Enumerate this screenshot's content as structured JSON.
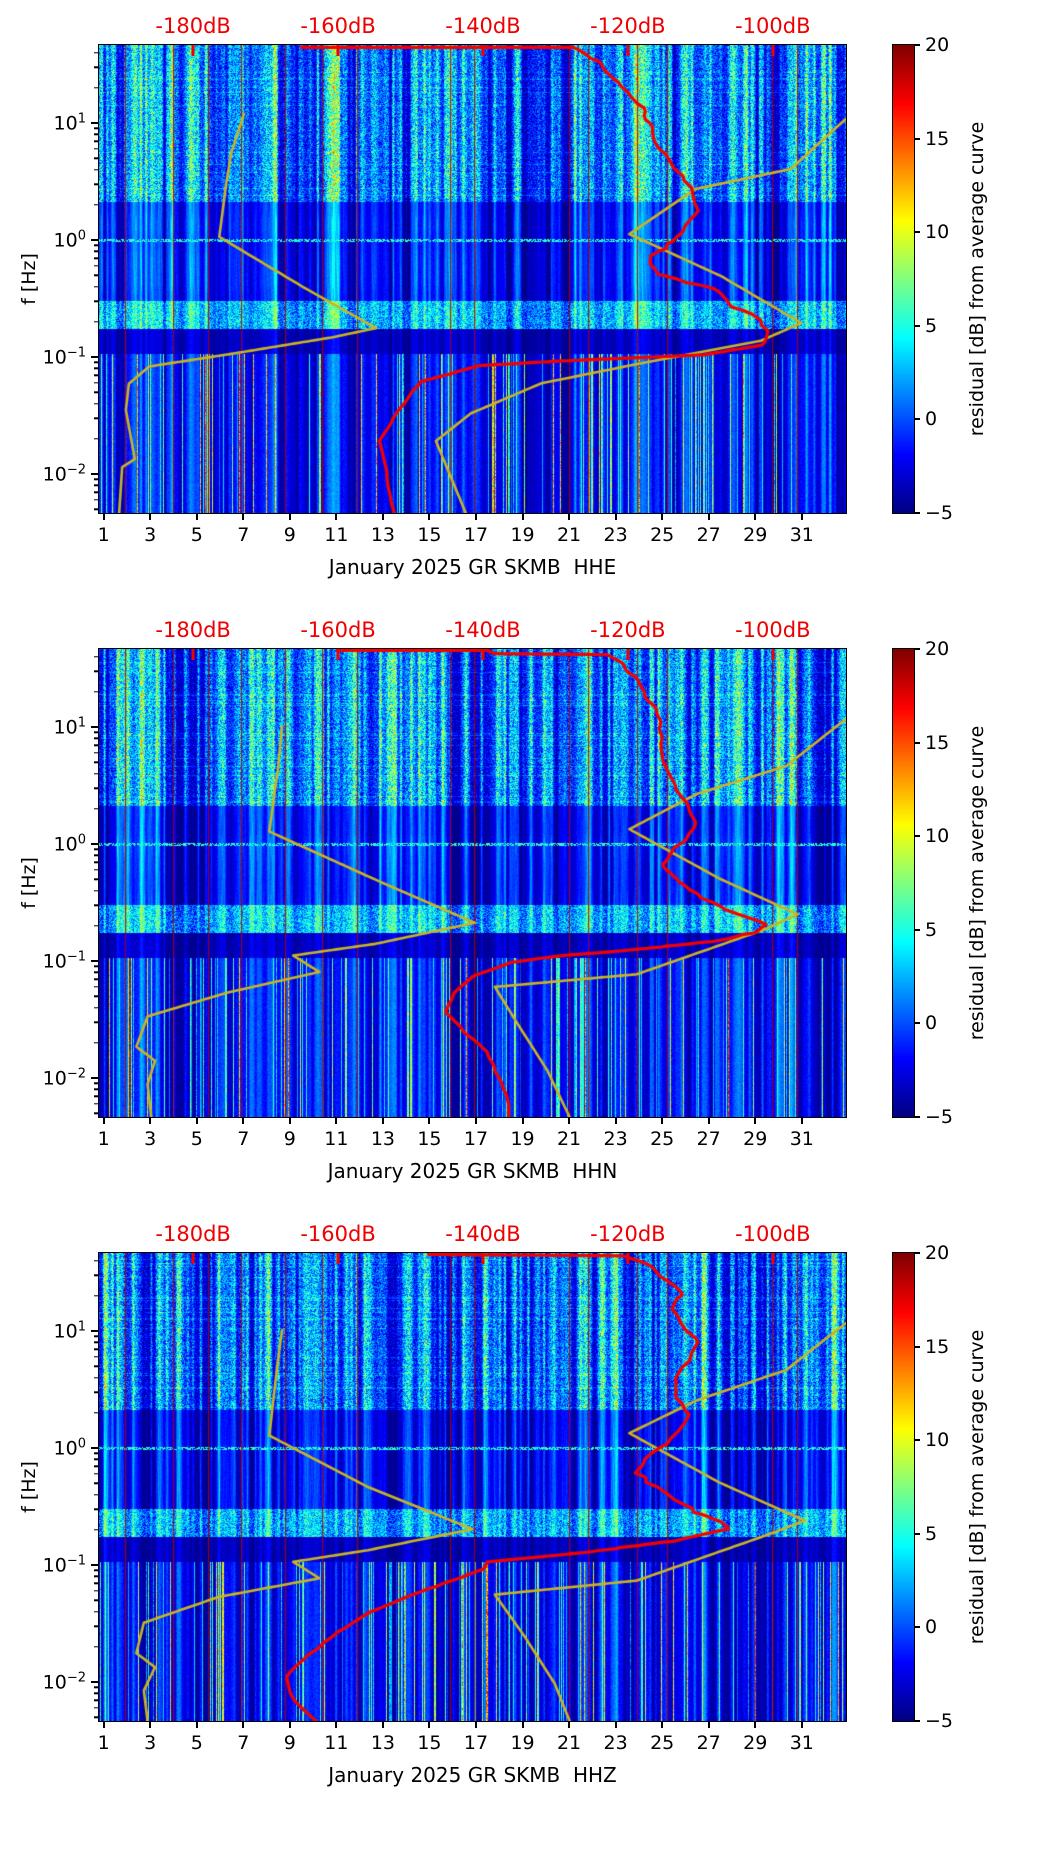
{
  "chart_data": {
    "type": "heatmap",
    "description": "Three stacked seismic PSD-residual spectrograms (jet colormap) for station GR SKMB, January 2025, channels HHE/HHN/HHZ. Each panel shows residual [dB] from average curve vs day-of-month (x) and frequency (y, log scale). A red mean-PSD curve and two yellow reference noise-model curves are overlaid, read against the red top dB axis.",
    "station": "GR SKMB",
    "month": "January 2025",
    "channels": [
      "HHE",
      "HHN",
      "HHZ"
    ],
    "axes": {
      "ylabel": "f [Hz]",
      "y_base": "10",
      "y_exponents": [
        "1",
        "0",
        "−1",
        "−2"
      ],
      "y_scale": "log",
      "y_range_hz": [
        0.0047,
        46.4
      ],
      "x_tick_labels": [
        "1",
        "3",
        "5",
        "7",
        "9",
        "11",
        "13",
        "15",
        "17",
        "19",
        "21",
        "23",
        "25",
        "27",
        "29",
        "31"
      ],
      "x_tick_days": [
        1,
        3,
        5,
        7,
        9,
        11,
        13,
        15,
        17,
        19,
        21,
        23,
        25,
        27,
        29,
        31
      ],
      "x_range_days": [
        0.8,
        32.9
      ],
      "top_tick_labels": [
        "-180dB",
        "-160dB",
        "-140dB",
        "-120dB",
        "-100dB"
      ],
      "top_tick_db": [
        -180,
        -160,
        -140,
        -120,
        -100
      ],
      "top_tick_fx": [
        0.126,
        0.32,
        0.514,
        0.708,
        0.902
      ],
      "grid": false
    },
    "colorbar": {
      "label": "residual [dB] from average curve",
      "tick_labels": [
        "20",
        "15",
        "10",
        "5",
        "0",
        "−5"
      ],
      "tick_values": [
        20,
        15,
        10,
        5,
        0,
        -5
      ],
      "range": [
        -5,
        20
      ],
      "colormap": "jet"
    },
    "colors": {
      "red_curve": "#f40000",
      "yellow_curve": "#c9b425",
      "db_axis_red": "#ee0000",
      "event_line_red": "#aa0000",
      "background_min": "#000080"
    },
    "event_line_days": [
      1.9,
      4.0,
      5.5,
      6.9,
      8.8,
      10.4,
      11.9,
      15.9,
      16.9,
      21.0,
      21.8,
      23.9,
      25.2,
      29.7,
      30.8
    ],
    "panels": [
      {
        "channel": "HHE",
        "xlabel": "January 2025 GR SKMB  HHE",
        "seed": 11,
        "red_curve": [
          [
            0.27,
            0.005
          ],
          [
            0.635,
            0.005
          ],
          [
            0.67,
            0.035
          ],
          [
            0.685,
            0.07
          ],
          [
            0.71,
            0.1
          ],
          [
            0.73,
            0.135
          ],
          [
            0.74,
            0.185
          ],
          [
            0.752,
            0.22
          ],
          [
            0.765,
            0.26
          ],
          [
            0.795,
            0.305
          ],
          [
            0.8,
            0.355
          ],
          [
            0.783,
            0.39
          ],
          [
            0.77,
            0.42
          ],
          [
            0.74,
            0.45
          ],
          [
            0.738,
            0.47
          ],
          [
            0.75,
            0.49
          ],
          [
            0.78,
            0.505
          ],
          [
            0.825,
            0.52
          ],
          [
            0.847,
            0.56
          ],
          [
            0.876,
            0.575
          ],
          [
            0.897,
            0.61
          ],
          [
            0.892,
            0.64
          ],
          [
            0.81,
            0.662
          ],
          [
            0.62,
            0.675
          ],
          [
            0.51,
            0.685
          ],
          [
            0.43,
            0.72
          ],
          [
            0.4,
            0.782
          ],
          [
            0.376,
            0.846
          ],
          [
            0.384,
            0.91
          ],
          [
            0.395,
            1.0
          ]
        ],
        "yellow_high_curve": [
          [
            1.0,
            0.158
          ],
          [
            0.99,
            0.172
          ],
          [
            0.926,
            0.265
          ],
          [
            0.798,
            0.308
          ],
          [
            0.71,
            0.404
          ],
          [
            0.833,
            0.494
          ],
          [
            0.94,
            0.594
          ],
          [
            0.886,
            0.632
          ],
          [
            0.726,
            0.68
          ],
          [
            0.592,
            0.723
          ],
          [
            0.498,
            0.787
          ],
          [
            0.451,
            0.846
          ],
          [
            0.491,
            1.0
          ]
        ],
        "yellow_low_curve": [
          [
            0.194,
            0.147
          ],
          [
            0.177,
            0.231
          ],
          [
            0.17,
            0.3
          ],
          [
            0.161,
            0.41
          ],
          [
            0.271,
            0.515
          ],
          [
            0.371,
            0.605
          ],
          [
            0.311,
            0.625
          ],
          [
            0.177,
            0.66
          ],
          [
            0.067,
            0.687
          ],
          [
            0.04,
            0.724
          ],
          [
            0.036,
            0.78
          ],
          [
            0.048,
            0.885
          ],
          [
            0.031,
            0.902
          ],
          [
            0.027,
            1.0
          ]
        ],
        "features": [
          {
            "x": 0.018,
            "y": 0.14,
            "w": 0.024,
            "h": 0.36,
            "c": "o"
          },
          {
            "x": 0.018,
            "y": 0.82,
            "w": 0.026,
            "h": 0.42,
            "c": "r"
          },
          {
            "x": 0.196,
            "y": 0.14,
            "w": 0.036,
            "h": 0.3,
            "c": "o"
          },
          {
            "x": 0.197,
            "y": 0.78,
            "w": 0.042,
            "h": 0.5,
            "c": "r"
          },
          {
            "x": 0.065,
            "y": 0.6,
            "w": 0.05,
            "h": 0.05,
            "c": "y"
          },
          {
            "x": 0.43,
            "y": 0.88,
            "w": 0.055,
            "h": 0.36,
            "c": "y2"
          },
          {
            "x": 0.73,
            "y": 0.88,
            "w": 0.045,
            "h": 0.34,
            "c": "y2"
          },
          {
            "x": 0.857,
            "y": 0.607,
            "w": 0.066,
            "h": 0.055,
            "c": "d"
          }
        ]
      },
      {
        "channel": "HHN",
        "xlabel": "January 2025 GR SKMB  HHN",
        "seed": 47,
        "red_curve": [
          [
            0.32,
            0.003
          ],
          [
            0.52,
            0.003
          ],
          [
            0.53,
            0.01
          ],
          [
            0.68,
            0.012
          ],
          [
            0.7,
            0.03
          ],
          [
            0.72,
            0.07
          ],
          [
            0.73,
            0.1
          ],
          [
            0.745,
            0.13
          ],
          [
            0.75,
            0.17
          ],
          [
            0.755,
            0.2
          ],
          [
            0.76,
            0.25
          ],
          [
            0.77,
            0.3
          ],
          [
            0.79,
            0.33
          ],
          [
            0.8,
            0.37
          ],
          [
            0.79,
            0.4
          ],
          [
            0.77,
            0.43
          ],
          [
            0.755,
            0.46
          ],
          [
            0.775,
            0.5
          ],
          [
            0.8,
            0.525
          ],
          [
            0.83,
            0.55
          ],
          [
            0.86,
            0.57
          ],
          [
            0.895,
            0.588
          ],
          [
            0.88,
            0.605
          ],
          [
            0.82,
            0.625
          ],
          [
            0.76,
            0.635
          ],
          [
            0.7,
            0.645
          ],
          [
            0.62,
            0.655
          ],
          [
            0.55,
            0.67
          ],
          [
            0.5,
            0.7
          ],
          [
            0.475,
            0.735
          ],
          [
            0.465,
            0.775
          ],
          [
            0.49,
            0.82
          ],
          [
            0.52,
            0.86
          ],
          [
            0.53,
            0.9
          ],
          [
            0.545,
            0.95
          ],
          [
            0.55,
            1.0
          ]
        ],
        "yellow_high_curve": [
          [
            1.0,
            0.15
          ],
          [
            0.985,
            0.168
          ],
          [
            0.92,
            0.25
          ],
          [
            0.8,
            0.31
          ],
          [
            0.71,
            0.385
          ],
          [
            0.83,
            0.49
          ],
          [
            0.935,
            0.567
          ],
          [
            0.89,
            0.6
          ],
          [
            0.72,
            0.695
          ],
          [
            0.53,
            0.722
          ],
          [
            0.56,
            0.8
          ],
          [
            0.6,
            0.9
          ],
          [
            0.63,
            1.0
          ]
        ],
        "yellow_low_curve": [
          [
            0.245,
            0.165
          ],
          [
            0.24,
            0.25
          ],
          [
            0.228,
            0.39
          ],
          [
            0.38,
            0.5
          ],
          [
            0.503,
            0.585
          ],
          [
            0.37,
            0.63
          ],
          [
            0.26,
            0.655
          ],
          [
            0.295,
            0.69
          ],
          [
            0.17,
            0.735
          ],
          [
            0.065,
            0.785
          ],
          [
            0.05,
            0.85
          ],
          [
            0.075,
            0.88
          ],
          [
            0.065,
            0.93
          ],
          [
            0.07,
            1.0
          ]
        ],
        "features": [
          {
            "x": 0.018,
            "y": 0.13,
            "w": 0.024,
            "h": 0.34,
            "c": "o"
          },
          {
            "x": 0.018,
            "y": 0.8,
            "w": 0.026,
            "h": 0.44,
            "c": "r"
          },
          {
            "x": 0.196,
            "y": 0.12,
            "w": 0.036,
            "h": 0.28,
            "c": "o"
          },
          {
            "x": 0.197,
            "y": 0.78,
            "w": 0.042,
            "h": 0.5,
            "c": "r"
          },
          {
            "x": 0.075,
            "y": 0.585,
            "w": 0.05,
            "h": 0.05,
            "c": "y"
          },
          {
            "x": 0.255,
            "y": 0.585,
            "w": 0.04,
            "h": 0.045,
            "c": "y"
          },
          {
            "x": 0.5,
            "y": 0.6,
            "w": 0.04,
            "h": 0.04,
            "c": "y"
          },
          {
            "x": 0.44,
            "y": 0.88,
            "w": 0.055,
            "h": 0.36,
            "c": "y2"
          },
          {
            "x": 0.73,
            "y": 0.88,
            "w": 0.045,
            "h": 0.34,
            "c": "y2"
          },
          {
            "x": 0.846,
            "y": 0.592,
            "w": 0.07,
            "h": 0.06,
            "c": "d"
          }
        ]
      },
      {
        "channel": "HHZ",
        "xlabel": "January 2025 GR SKMB  HHZ",
        "seed": 83,
        "red_curve": [
          [
            0.44,
            0.003
          ],
          [
            0.7,
            0.006
          ],
          [
            0.73,
            0.02
          ],
          [
            0.755,
            0.05
          ],
          [
            0.78,
            0.09
          ],
          [
            0.77,
            0.12
          ],
          [
            0.785,
            0.16
          ],
          [
            0.8,
            0.19
          ],
          [
            0.79,
            0.23
          ],
          [
            0.77,
            0.27
          ],
          [
            0.775,
            0.31
          ],
          [
            0.79,
            0.345
          ],
          [
            0.775,
            0.38
          ],
          [
            0.755,
            0.41
          ],
          [
            0.73,
            0.44
          ],
          [
            0.72,
            0.47
          ],
          [
            0.745,
            0.5
          ],
          [
            0.775,
            0.53
          ],
          [
            0.8,
            0.555
          ],
          [
            0.83,
            0.575
          ],
          [
            0.84,
            0.59
          ],
          [
            0.77,
            0.615
          ],
          [
            0.65,
            0.64
          ],
          [
            0.52,
            0.66
          ],
          [
            0.515,
            0.675
          ],
          [
            0.49,
            0.69
          ],
          [
            0.42,
            0.73
          ],
          [
            0.36,
            0.77
          ],
          [
            0.32,
            0.81
          ],
          [
            0.28,
            0.86
          ],
          [
            0.25,
            0.905
          ],
          [
            0.255,
            0.94
          ],
          [
            0.27,
            0.97
          ],
          [
            0.29,
            1.0
          ]
        ],
        "yellow_high_curve": [
          [
            1.0,
            0.15
          ],
          [
            0.985,
            0.168
          ],
          [
            0.92,
            0.25
          ],
          [
            0.8,
            0.315
          ],
          [
            0.71,
            0.385
          ],
          [
            0.83,
            0.49
          ],
          [
            0.945,
            0.572
          ],
          [
            0.89,
            0.605
          ],
          [
            0.72,
            0.7
          ],
          [
            0.53,
            0.73
          ],
          [
            0.57,
            0.82
          ],
          [
            0.61,
            0.92
          ],
          [
            0.63,
            1.0
          ]
        ],
        "yellow_low_curve": [
          [
            0.245,
            0.165
          ],
          [
            0.238,
            0.25
          ],
          [
            0.228,
            0.39
          ],
          [
            0.36,
            0.5
          ],
          [
            0.5,
            0.59
          ],
          [
            0.36,
            0.635
          ],
          [
            0.26,
            0.66
          ],
          [
            0.295,
            0.695
          ],
          [
            0.16,
            0.735
          ],
          [
            0.06,
            0.79
          ],
          [
            0.05,
            0.855
          ],
          [
            0.075,
            0.885
          ],
          [
            0.06,
            0.935
          ],
          [
            0.065,
            1.0
          ]
        ],
        "features": [
          {
            "x": 0.018,
            "y": 0.12,
            "w": 0.024,
            "h": 0.3,
            "c": "o"
          },
          {
            "x": 0.025,
            "y": 0.84,
            "w": 0.036,
            "h": 0.4,
            "c": "r"
          },
          {
            "x": 0.196,
            "y": 0.12,
            "w": 0.036,
            "h": 0.28,
            "c": "o"
          },
          {
            "x": 0.197,
            "y": 0.8,
            "w": 0.042,
            "h": 0.48,
            "c": "r"
          },
          {
            "x": 0.315,
            "y": 0.88,
            "w": 0.03,
            "h": 0.34,
            "c": "y2"
          },
          {
            "x": 0.73,
            "y": 0.86,
            "w": 0.045,
            "h": 0.34,
            "c": "y2"
          },
          {
            "x": 0.075,
            "y": 0.59,
            "w": 0.045,
            "h": 0.045,
            "c": "y"
          },
          {
            "x": 0.845,
            "y": 0.6,
            "w": 0.07,
            "h": 0.06,
            "c": "d"
          }
        ]
      }
    ]
  }
}
